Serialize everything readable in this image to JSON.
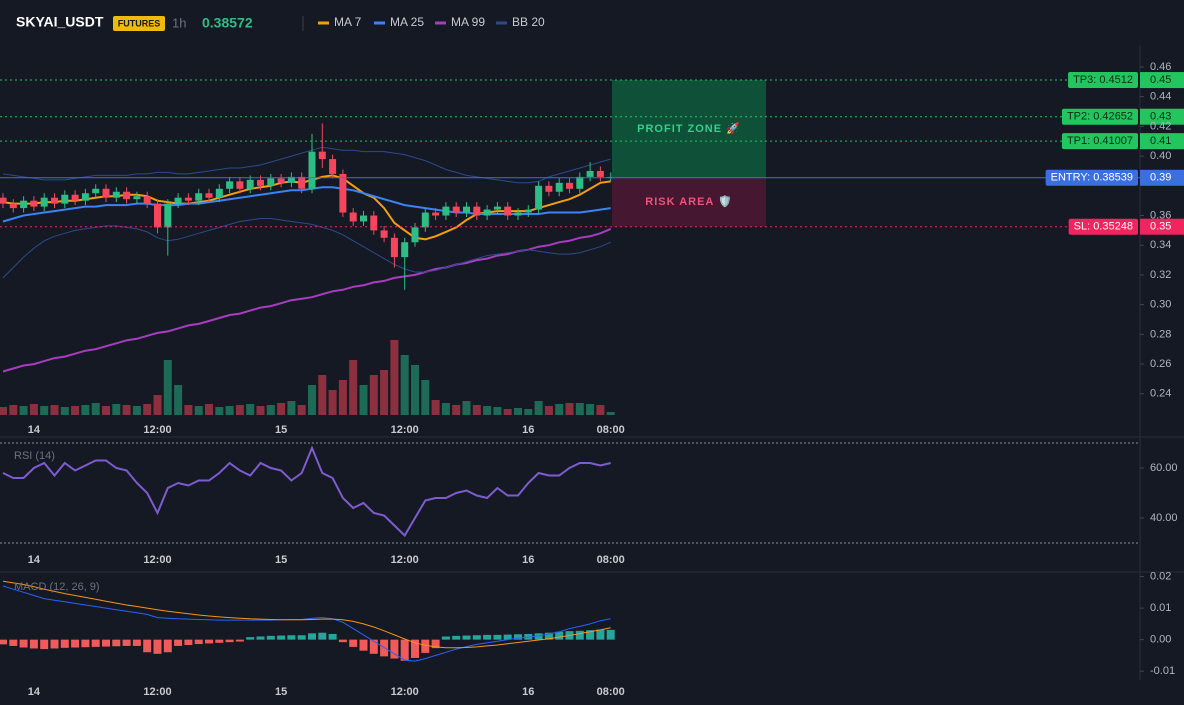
{
  "header": {
    "symbol": "SKYAI_USDT",
    "badge": "FUTURES",
    "interval": "1h",
    "price": 0.38572
  },
  "chart_data": [
    {
      "type": "candlestick",
      "categories": [
        null,
        null,
        null,
        "14",
        null,
        null,
        null,
        null,
        null,
        null,
        null,
        null,
        null,
        null,
        null,
        "12:00",
        null,
        null,
        null,
        null,
        null,
        null,
        null,
        null,
        null,
        null,
        null,
        "15",
        null,
        null,
        null,
        null,
        null,
        null,
        null,
        null,
        null,
        null,
        null,
        "12:00",
        null,
        null,
        null,
        null,
        null,
        null,
        null,
        null,
        null,
        null,
        null,
        "16",
        null,
        null,
        null,
        null,
        null,
        null,
        null,
        "08:00"
      ],
      "open": [
        0.372,
        0.368,
        0.365,
        0.37,
        0.366,
        0.372,
        0.368,
        0.374,
        0.37,
        0.375,
        0.378,
        0.372,
        0.376,
        0.371,
        0.373,
        0.368,
        0.352,
        0.368,
        0.372,
        0.37,
        0.375,
        0.372,
        0.378,
        0.383,
        0.378,
        0.384,
        0.38,
        0.385,
        0.382,
        0.386,
        0.378,
        0.403,
        0.398,
        0.388,
        0.362,
        0.356,
        0.36,
        0.35,
        0.345,
        0.332,
        0.342,
        0.352,
        0.362,
        0.36,
        0.366,
        0.362,
        0.366,
        0.36,
        0.364,
        0.366,
        0.36,
        0.362,
        0.364,
        0.38,
        0.376,
        0.382,
        0.378,
        0.386,
        0.39,
        0.386
      ],
      "high": [
        0.375,
        0.371,
        0.373,
        0.373,
        0.375,
        0.375,
        0.377,
        0.377,
        0.378,
        0.381,
        0.381,
        0.379,
        0.379,
        0.376,
        0.376,
        0.371,
        0.371,
        0.375,
        0.375,
        0.378,
        0.378,
        0.381,
        0.386,
        0.386,
        0.387,
        0.387,
        0.388,
        0.388,
        0.389,
        0.389,
        0.415,
        0.422,
        0.401,
        0.391,
        0.365,
        0.363,
        0.363,
        0.353,
        0.348,
        0.345,
        0.355,
        0.365,
        0.365,
        0.369,
        0.369,
        0.369,
        0.369,
        0.367,
        0.369,
        0.369,
        0.365,
        0.367,
        0.383,
        0.383,
        0.385,
        0.385,
        0.389,
        0.396,
        0.393,
        0.389
      ],
      "low": [
        0.365,
        0.362,
        0.362,
        0.363,
        0.363,
        0.365,
        0.365,
        0.367,
        0.367,
        0.372,
        0.369,
        0.369,
        0.368,
        0.368,
        0.365,
        0.348,
        0.333,
        0.365,
        0.367,
        0.367,
        0.369,
        0.369,
        0.375,
        0.375,
        0.375,
        0.377,
        0.377,
        0.379,
        0.379,
        0.375,
        0.375,
        0.392,
        0.385,
        0.359,
        0.353,
        0.353,
        0.347,
        0.342,
        0.325,
        0.31,
        0.339,
        0.349,
        0.357,
        0.357,
        0.359,
        0.359,
        0.357,
        0.357,
        0.361,
        0.357,
        0.357,
        0.359,
        0.361,
        0.373,
        0.373,
        0.375,
        0.375,
        0.383,
        0.383,
        0.383
      ],
      "close": [
        0.368,
        0.365,
        0.37,
        0.366,
        0.372,
        0.368,
        0.374,
        0.37,
        0.375,
        0.378,
        0.372,
        0.376,
        0.371,
        0.373,
        0.368,
        0.352,
        0.368,
        0.372,
        0.37,
        0.375,
        0.372,
        0.378,
        0.383,
        0.378,
        0.384,
        0.38,
        0.385,
        0.382,
        0.386,
        0.378,
        0.403,
        0.398,
        0.388,
        0.362,
        0.356,
        0.36,
        0.35,
        0.345,
        0.332,
        0.342,
        0.352,
        0.362,
        0.36,
        0.366,
        0.362,
        0.366,
        0.36,
        0.364,
        0.366,
        0.36,
        0.362,
        0.364,
        0.38,
        0.376,
        0.382,
        0.378,
        0.386,
        0.39,
        0.386,
        0.386
      ],
      "up_color": "#2ebd85",
      "down_color": "#f6465d",
      "volume": [
        8,
        10,
        9,
        11,
        9,
        10,
        8,
        9,
        10,
        12,
        9,
        11,
        10,
        9,
        11,
        20,
        55,
        30,
        10,
        9,
        11,
        8,
        9,
        10,
        11,
        9,
        10,
        12,
        14,
        10,
        30,
        40,
        25,
        35,
        55,
        30,
        40,
        45,
        75,
        60,
        50,
        35,
        15,
        12,
        10,
        14,
        10,
        9,
        8,
        6,
        7,
        6,
        14,
        9,
        11,
        12,
        12,
        11,
        10,
        3
      ],
      "volume_up_color": "#1d6b57",
      "volume_down_color": "#8c3040",
      "lines": [
        {
          "name": "MA 7",
          "color": "#f59e0b",
          "values": [
            0.369,
            0.368,
            0.368,
            0.368,
            0.369,
            0.369,
            0.37,
            0.37,
            0.371,
            0.372,
            0.373,
            0.373,
            0.374,
            0.374,
            0.373,
            0.37,
            0.369,
            0.368,
            0.368,
            0.369,
            0.37,
            0.372,
            0.374,
            0.376,
            0.378,
            0.379,
            0.38,
            0.382,
            0.383,
            0.382,
            0.384,
            0.386,
            0.387,
            0.385,
            0.38,
            0.375,
            0.372,
            0.365,
            0.355,
            0.35,
            0.345,
            0.344,
            0.346,
            0.349,
            0.352,
            0.357,
            0.361,
            0.362,
            0.363,
            0.363,
            0.363,
            0.363,
            0.365,
            0.367,
            0.369,
            0.371,
            0.374,
            0.378,
            0.382,
            0.383
          ]
        },
        {
          "name": "MA 25",
          "color": "#3b82f6",
          "values": [
            0.356,
            0.358,
            0.36,
            0.361,
            0.362,
            0.363,
            0.364,
            0.365,
            0.366,
            0.366,
            0.367,
            0.367,
            0.367,
            0.368,
            0.368,
            0.367,
            0.367,
            0.367,
            0.368,
            0.368,
            0.369,
            0.37,
            0.371,
            0.372,
            0.373,
            0.374,
            0.375,
            0.376,
            0.377,
            0.377,
            0.378,
            0.379,
            0.379,
            0.378,
            0.377,
            0.375,
            0.373,
            0.371,
            0.369,
            0.367,
            0.366,
            0.365,
            0.364,
            0.363,
            0.362,
            0.362,
            0.361,
            0.361,
            0.361,
            0.361,
            0.361,
            0.361,
            0.361,
            0.362,
            0.362,
            0.362,
            0.362,
            0.363,
            0.364,
            0.365
          ]
        },
        {
          "name": "MA 99",
          "color": "#a93cc0",
          "values": [
            0.255,
            0.257,
            0.259,
            0.26,
            0.262,
            0.264,
            0.265,
            0.267,
            0.269,
            0.27,
            0.272,
            0.274,
            0.276,
            0.277,
            0.279,
            0.281,
            0.282,
            0.284,
            0.286,
            0.287,
            0.289,
            0.291,
            0.293,
            0.294,
            0.296,
            0.298,
            0.299,
            0.301,
            0.303,
            0.304,
            0.305,
            0.307,
            0.309,
            0.31,
            0.312,
            0.313,
            0.315,
            0.316,
            0.318,
            0.319,
            0.32,
            0.322,
            0.324,
            0.325,
            0.327,
            0.328,
            0.33,
            0.331,
            0.333,
            0.334,
            0.336,
            0.337,
            0.339,
            0.34,
            0.342,
            0.343,
            0.345,
            0.346,
            0.348,
            0.351
          ]
        },
        {
          "name": "BB 20",
          "color": "#2c4a8c",
          "upper": [
            0.388,
            0.387,
            0.386,
            0.385,
            0.384,
            0.384,
            0.384,
            0.385,
            0.386,
            0.387,
            0.387,
            0.387,
            0.387,
            0.388,
            0.388,
            0.389,
            0.389,
            0.388,
            0.388,
            0.389,
            0.39,
            0.391,
            0.392,
            0.392,
            0.393,
            0.394,
            0.396,
            0.398,
            0.4,
            0.402,
            0.404,
            0.406,
            0.405,
            0.404,
            0.404,
            0.403,
            0.403,
            0.403,
            0.402,
            0.401,
            0.399,
            0.397,
            0.394,
            0.391,
            0.389,
            0.387,
            0.386,
            0.385,
            0.384,
            0.383,
            0.382,
            0.382,
            0.383,
            0.386,
            0.388,
            0.39,
            0.392,
            0.394,
            0.396,
            0.398
          ],
          "lower": [
            0.318,
            0.325,
            0.332,
            0.338,
            0.343,
            0.346,
            0.348,
            0.35,
            0.351,
            0.352,
            0.353,
            0.353,
            0.352,
            0.351,
            0.349,
            0.345,
            0.343,
            0.344,
            0.346,
            0.348,
            0.35,
            0.352,
            0.354,
            0.356,
            0.357,
            0.358,
            0.358,
            0.357,
            0.356,
            0.355,
            0.354,
            0.352,
            0.35,
            0.347,
            0.343,
            0.339,
            0.335,
            0.331,
            0.327,
            0.324,
            0.322,
            0.322,
            0.323,
            0.325,
            0.327,
            0.329,
            0.331,
            0.333,
            0.334,
            0.335,
            0.336,
            0.337,
            0.336,
            0.335,
            0.334,
            0.334,
            0.335,
            0.337,
            0.339,
            0.342
          ]
        }
      ],
      "ylim": [
        0.2257,
        0.4748
      ],
      "yticks": [
        0.46,
        0.44,
        0.42,
        {
          "value": 0.4,
          "label": "0.40"
        },
        0.36,
        0.34,
        0.32,
        {
          "value": 0.3,
          "label": "0.30"
        },
        0.28,
        0.26,
        0.24
      ],
      "levels": [
        {
          "label": "TP3: 0.4512",
          "value": 0.4512,
          "axis_label": "0.45",
          "color": "#22c55e"
        },
        {
          "label": "TP2: 0.42652",
          "value": 0.42652,
          "axis_label": "0.43",
          "color": "#22c55e"
        },
        {
          "label": "TP1: 0.41007",
          "value": 0.41007,
          "axis_label": "0.41",
          "color": "#22c55e"
        },
        {
          "label": "ENTRY: 0.38539",
          "value": 0.38539,
          "axis_label": "0.39",
          "color": "#3b6fe0"
        },
        {
          "label": "SL: 0.35248",
          "value": 0.35248,
          "axis_label": "0.35",
          "color": "#f0245f"
        }
      ],
      "zones": [
        {
          "label": "PROFIT ZONE 🚀",
          "color": "#0e5a3c",
          "text_color": "#2ed28a"
        },
        {
          "label": "RISK AREA 🛡️",
          "color": "#4d1833",
          "text_color": "#f0527a"
        }
      ]
    },
    {
      "type": "line",
      "title": "RSI (14)",
      "color": "#7e5cd0",
      "values": [
        58,
        56,
        56,
        60,
        62,
        57,
        62,
        59,
        61,
        63,
        63,
        60,
        59,
        54,
        50,
        42,
        52,
        54,
        53,
        55,
        55,
        58,
        62,
        59,
        57,
        62,
        60,
        59,
        55,
        58,
        68,
        58,
        56,
        48,
        44,
        46,
        42,
        41,
        37,
        33,
        40,
        47,
        48,
        48,
        50,
        51,
        49,
        48,
        52,
        49,
        49,
        54,
        58,
        57,
        57,
        60,
        62,
        62,
        61,
        62
      ],
      "ylim": [
        28,
        71.2
      ],
      "yticks": [
        {
          "value": 60,
          "label": "60.00"
        },
        {
          "value": 40,
          "label": "40.00"
        }
      ],
      "bands": [
        70,
        30
      ]
    },
    {
      "type": "macd",
      "title": "MACD (12, 26, 9)",
      "macd": {
        "color": "#2962ff",
        "values": [
          0.017,
          0.016,
          0.015,
          0.014,
          0.013,
          0.0125,
          0.012,
          0.0115,
          0.011,
          0.0105,
          0.01,
          0.0095,
          0.009,
          0.0085,
          0.008,
          0.007,
          0.0068,
          0.0066,
          0.0065,
          0.0064,
          0.0063,
          0.0062,
          0.0062,
          0.0062,
          0.0062,
          0.0062,
          0.0062,
          0.0063,
          0.0064,
          0.0064,
          0.0068,
          0.007,
          0.0066,
          0.0055,
          0.0035,
          0.0015,
          -0.0005,
          -0.0025,
          -0.0045,
          -0.0065,
          -0.0068,
          -0.006,
          -0.005,
          -0.004,
          -0.003,
          -0.0022,
          -0.0015,
          -0.001,
          -0.0005,
          0.0,
          0.0005,
          0.0008,
          0.0012,
          0.0018,
          0.0025,
          0.0035,
          0.0042,
          0.005,
          0.006,
          0.0066
        ]
      },
      "signal": {
        "color": "#f7931a",
        "values": [
          0.0185,
          0.018,
          0.0175,
          0.0168,
          0.016,
          0.0153,
          0.0146,
          0.014,
          0.0134,
          0.0128,
          0.0122,
          0.0116,
          0.011,
          0.0105,
          0.01,
          0.0095,
          0.009,
          0.0086,
          0.0082,
          0.0078,
          0.0075,
          0.0072,
          0.007,
          0.0068,
          0.0066,
          0.0065,
          0.0064,
          0.0063,
          0.0063,
          0.0063,
          0.0064,
          0.0065,
          0.0065,
          0.0063,
          0.0058,
          0.005,
          0.004,
          0.0028,
          0.0015,
          0.0002,
          -0.001,
          -0.0018,
          -0.0023,
          -0.0026,
          -0.0026,
          -0.0025,
          -0.0023,
          -0.002,
          -0.0017,
          -0.0013,
          -0.0009,
          -0.0005,
          -0.0001,
          0.0003,
          0.0008,
          0.0013,
          0.0019,
          0.0025,
          0.0031,
          0.0038
        ]
      },
      "histogram": {
        "positive_color": "#26a69a",
        "negative_color": "#f05a5a",
        "values": [
          -0.0015,
          -0.002,
          -0.0025,
          -0.0028,
          -0.003,
          -0.0028,
          -0.0026,
          -0.0025,
          -0.0024,
          -0.0023,
          -0.0022,
          -0.0021,
          -0.002,
          -0.002,
          -0.004,
          -0.0045,
          -0.004,
          -0.002,
          -0.0017,
          -0.0014,
          -0.0012,
          -0.001,
          -0.0008,
          -0.0006,
          0.0008,
          0.001,
          0.0012,
          0.0013,
          0.0014,
          0.0014,
          0.002,
          0.0022,
          0.0018,
          -0.0008,
          -0.0023,
          -0.0035,
          -0.0045,
          -0.0053,
          -0.006,
          -0.0067,
          -0.0058,
          -0.0042,
          -0.0027,
          0.001,
          0.0012,
          0.0013,
          0.0014,
          0.0015,
          0.0015,
          0.0016,
          0.0017,
          0.0018,
          0.002,
          0.0022,
          0.0025,
          0.0027,
          0.0028,
          0.003,
          0.0032,
          0.0031
        ]
      },
      "ylim": [
        -0.0128,
        0.0205
      ],
      "yticks": [
        0.02,
        0.01,
        {
          "value": 0,
          "label": "0.00"
        },
        -0.01
      ]
    }
  ]
}
